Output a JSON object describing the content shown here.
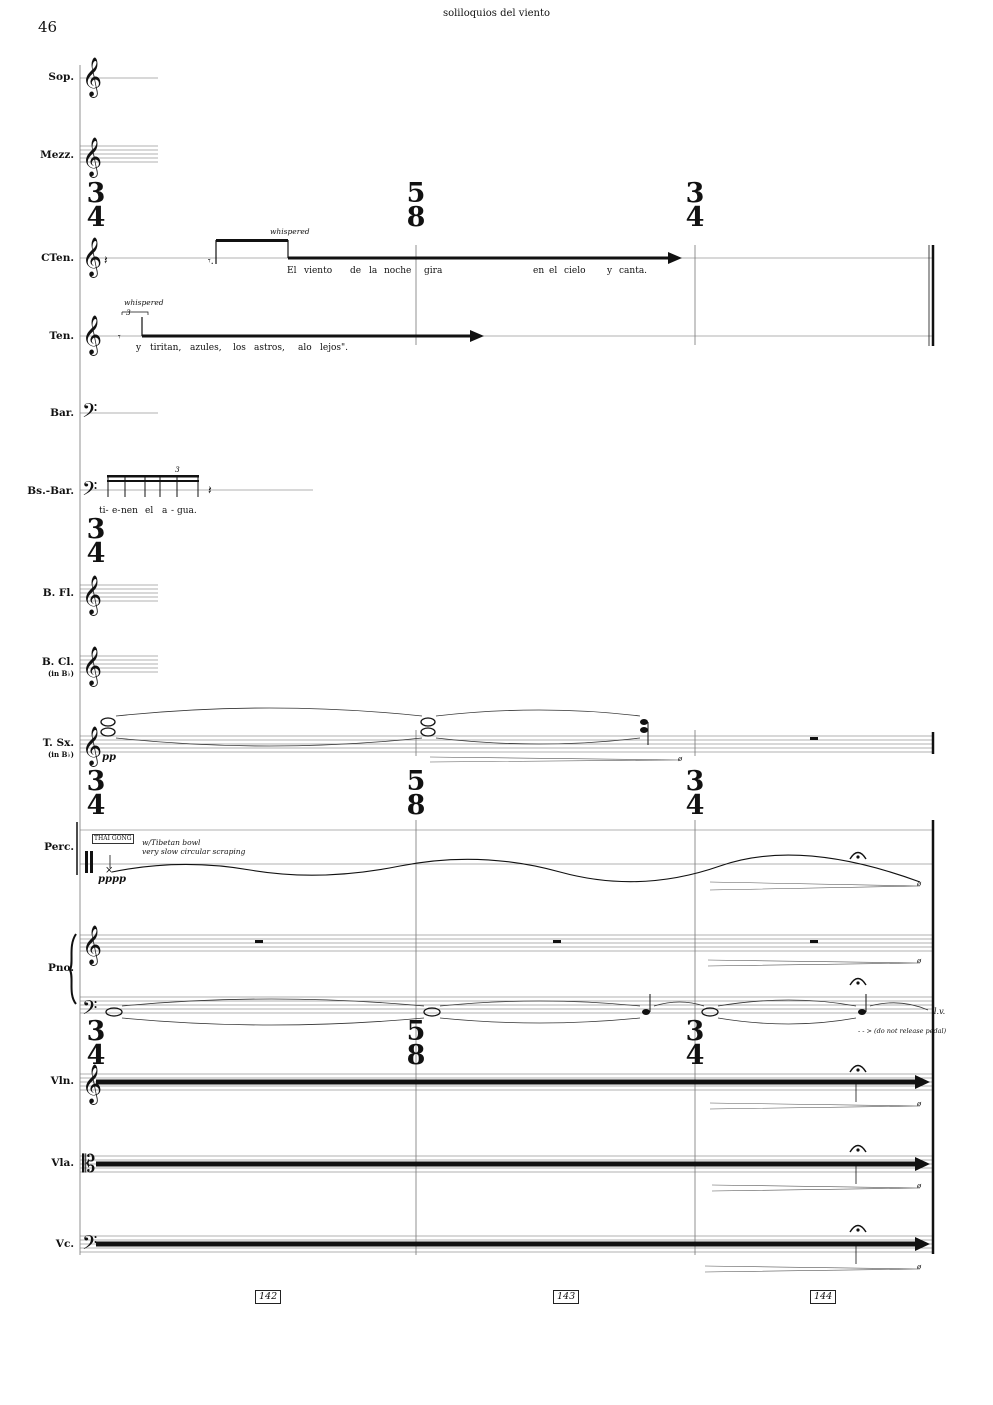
{
  "page_number": "46",
  "running_title": "soliloquios del viento",
  "instruments": [
    {
      "label": "Sop."
    },
    {
      "label": "Mezz."
    },
    {
      "label": "CTen."
    },
    {
      "label": "Ten."
    },
    {
      "label": "Bar."
    },
    {
      "label": "Bs.-Bar."
    },
    {
      "label": "B. Fl."
    },
    {
      "label": "B. Cl.",
      "sub": "(in B♭)"
    },
    {
      "label": "T. Sx.",
      "sub": "(in B♭)"
    },
    {
      "label": "Perc."
    },
    {
      "label": "Pno."
    },
    {
      "label": "Vln."
    },
    {
      "label": "Vla."
    },
    {
      "label": "Vc."
    }
  ],
  "time_signatures": [
    {
      "num": "3",
      "den": "4"
    },
    {
      "num": "5",
      "den": "8"
    },
    {
      "num": "3",
      "den": "4"
    }
  ],
  "expressions": {
    "cten_whispered": "whispered",
    "ten_whispered": "whispered",
    "tuplet3_a": "3",
    "tuplet3_b": "3",
    "perc_instrument": "THAI GONG",
    "perc_tech_1": "w/Tibetan bowl",
    "perc_tech_2": "very slow circular scraping",
    "lv": "l.v.",
    "pedal": "- - > (do not release pedal)"
  },
  "dynamics": {
    "tsax": "pp",
    "perc": "pppp",
    "niente": "ø"
  },
  "lyrics": {
    "cten": [
      "El",
      "viento",
      "de",
      "la",
      "noche",
      "gira",
      "en",
      "el",
      "cielo",
      "y",
      "canta."
    ],
    "ten": [
      "y",
      "tiritan,",
      "azules,",
      "los",
      "astros,",
      "alo",
      "lejos\"."
    ],
    "bsbar": [
      "ti-",
      "e-",
      "nen",
      "el",
      "a",
      "-",
      "gua."
    ]
  },
  "measure_numbers": [
    "142",
    "143",
    "144"
  ]
}
